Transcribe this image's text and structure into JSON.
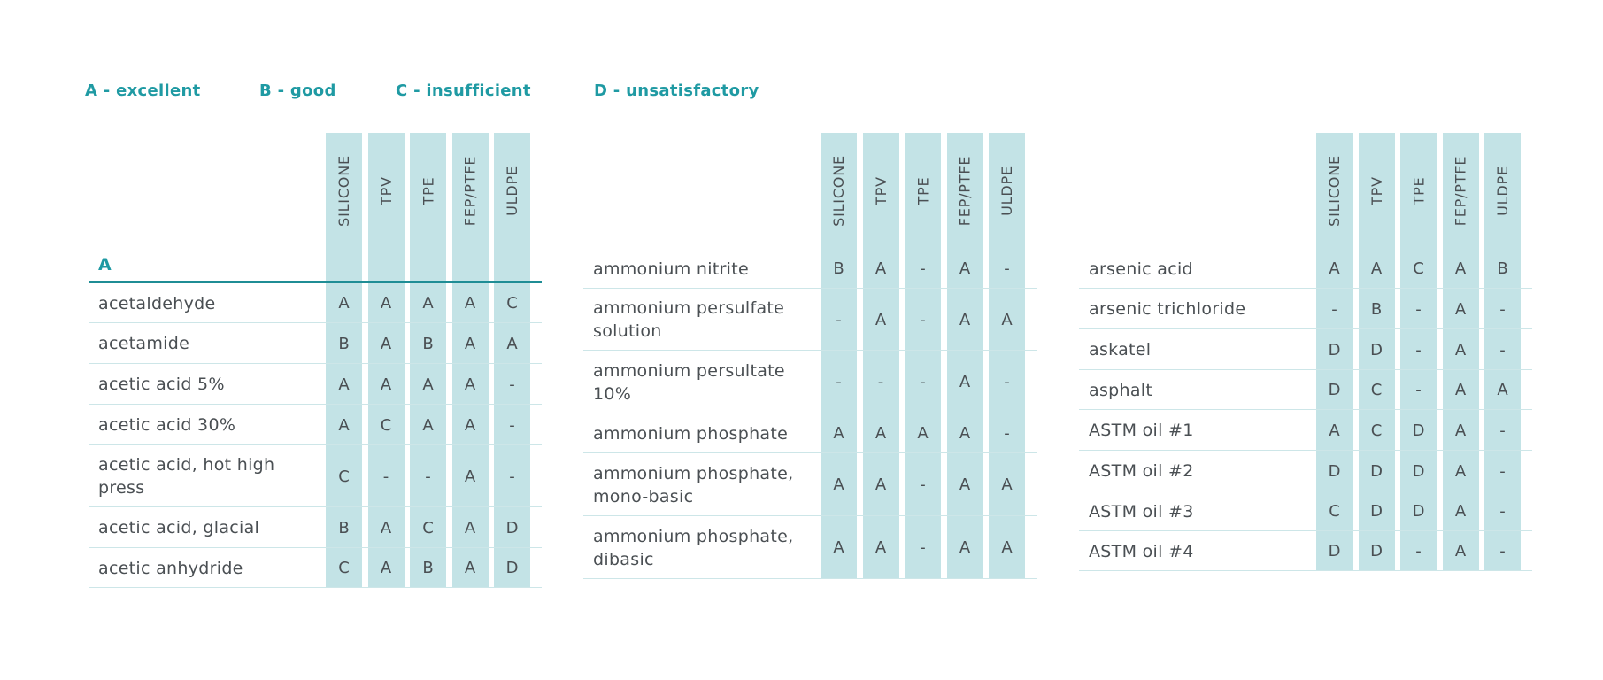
{
  "legend": [
    {
      "label": "A - excellent"
    },
    {
      "label": "B - good"
    },
    {
      "label": "C - insufficient"
    },
    {
      "label": "D - unsatisfactory"
    }
  ],
  "columns": [
    "SILICONE",
    "TPV",
    "TPE",
    "FEP/PTFE",
    "ULDPE"
  ],
  "colors": {
    "accent": "#1f9aa3",
    "column_fill": "#c3e3e6",
    "row_divider": "#cde6e8",
    "text": "#4a4f53"
  },
  "tables": [
    {
      "section": "A",
      "rows": [
        {
          "name": "acetaldehyde",
          "ratings": [
            "A",
            "A",
            "A",
            "A",
            "C"
          ]
        },
        {
          "name": "acetamide",
          "ratings": [
            "B",
            "A",
            "B",
            "A",
            "A"
          ]
        },
        {
          "name": "acetic acid 5%",
          "ratings": [
            "A",
            "A",
            "A",
            "A",
            "-"
          ]
        },
        {
          "name": "acetic acid 30%",
          "ratings": [
            "A",
            "C",
            "A",
            "A",
            "-"
          ]
        },
        {
          "name": "acetic acid, hot high press",
          "ratings": [
            "C",
            "-",
            "-",
            "A",
            "-"
          ]
        },
        {
          "name": "acetic acid, glacial",
          "ratings": [
            "B",
            "A",
            "C",
            "A",
            "D"
          ]
        },
        {
          "name": "acetic anhydride",
          "ratings": [
            "C",
            "A",
            "B",
            "A",
            "D"
          ]
        }
      ]
    },
    {
      "section": "",
      "rows": [
        {
          "name": "ammonium nitrite",
          "ratings": [
            "B",
            "A",
            "-",
            "A",
            "-"
          ]
        },
        {
          "name": "ammonium persulfate solution",
          "ratings": [
            "-",
            "A",
            "-",
            "A",
            "A"
          ]
        },
        {
          "name": "ammonium persultate 10%",
          "ratings": [
            "-",
            "-",
            "-",
            "A",
            "-"
          ]
        },
        {
          "name": "ammonium phosphate",
          "ratings": [
            "A",
            "A",
            "A",
            "A",
            "-"
          ]
        },
        {
          "name": "ammonium phosphate, mono-basic",
          "ratings": [
            "A",
            "A",
            "-",
            "A",
            "A"
          ]
        },
        {
          "name": "ammonium phosphate, dibasic",
          "ratings": [
            "A",
            "A",
            "-",
            "A",
            "A"
          ]
        }
      ]
    },
    {
      "section": "",
      "rows": [
        {
          "name": "arsenic acid",
          "ratings": [
            "A",
            "A",
            "C",
            "A",
            "B"
          ]
        },
        {
          "name": "arsenic trichloride",
          "ratings": [
            "-",
            "B",
            "-",
            "A",
            "-"
          ]
        },
        {
          "name": "askatel",
          "ratings": [
            "D",
            "D",
            "-",
            "A",
            "-"
          ]
        },
        {
          "name": "asphalt",
          "ratings": [
            "D",
            "C",
            "-",
            "A",
            "A"
          ]
        },
        {
          "name": "ASTM oil #1",
          "ratings": [
            "A",
            "C",
            "D",
            "A",
            "-"
          ]
        },
        {
          "name": "ASTM oil #2",
          "ratings": [
            "D",
            "D",
            "D",
            "A",
            "-"
          ]
        },
        {
          "name": "ASTM oil #3",
          "ratings": [
            "C",
            "D",
            "D",
            "A",
            "-"
          ]
        },
        {
          "name": "ASTM oil #4",
          "ratings": [
            "D",
            "D",
            "-",
            "A",
            "-"
          ]
        }
      ]
    }
  ]
}
